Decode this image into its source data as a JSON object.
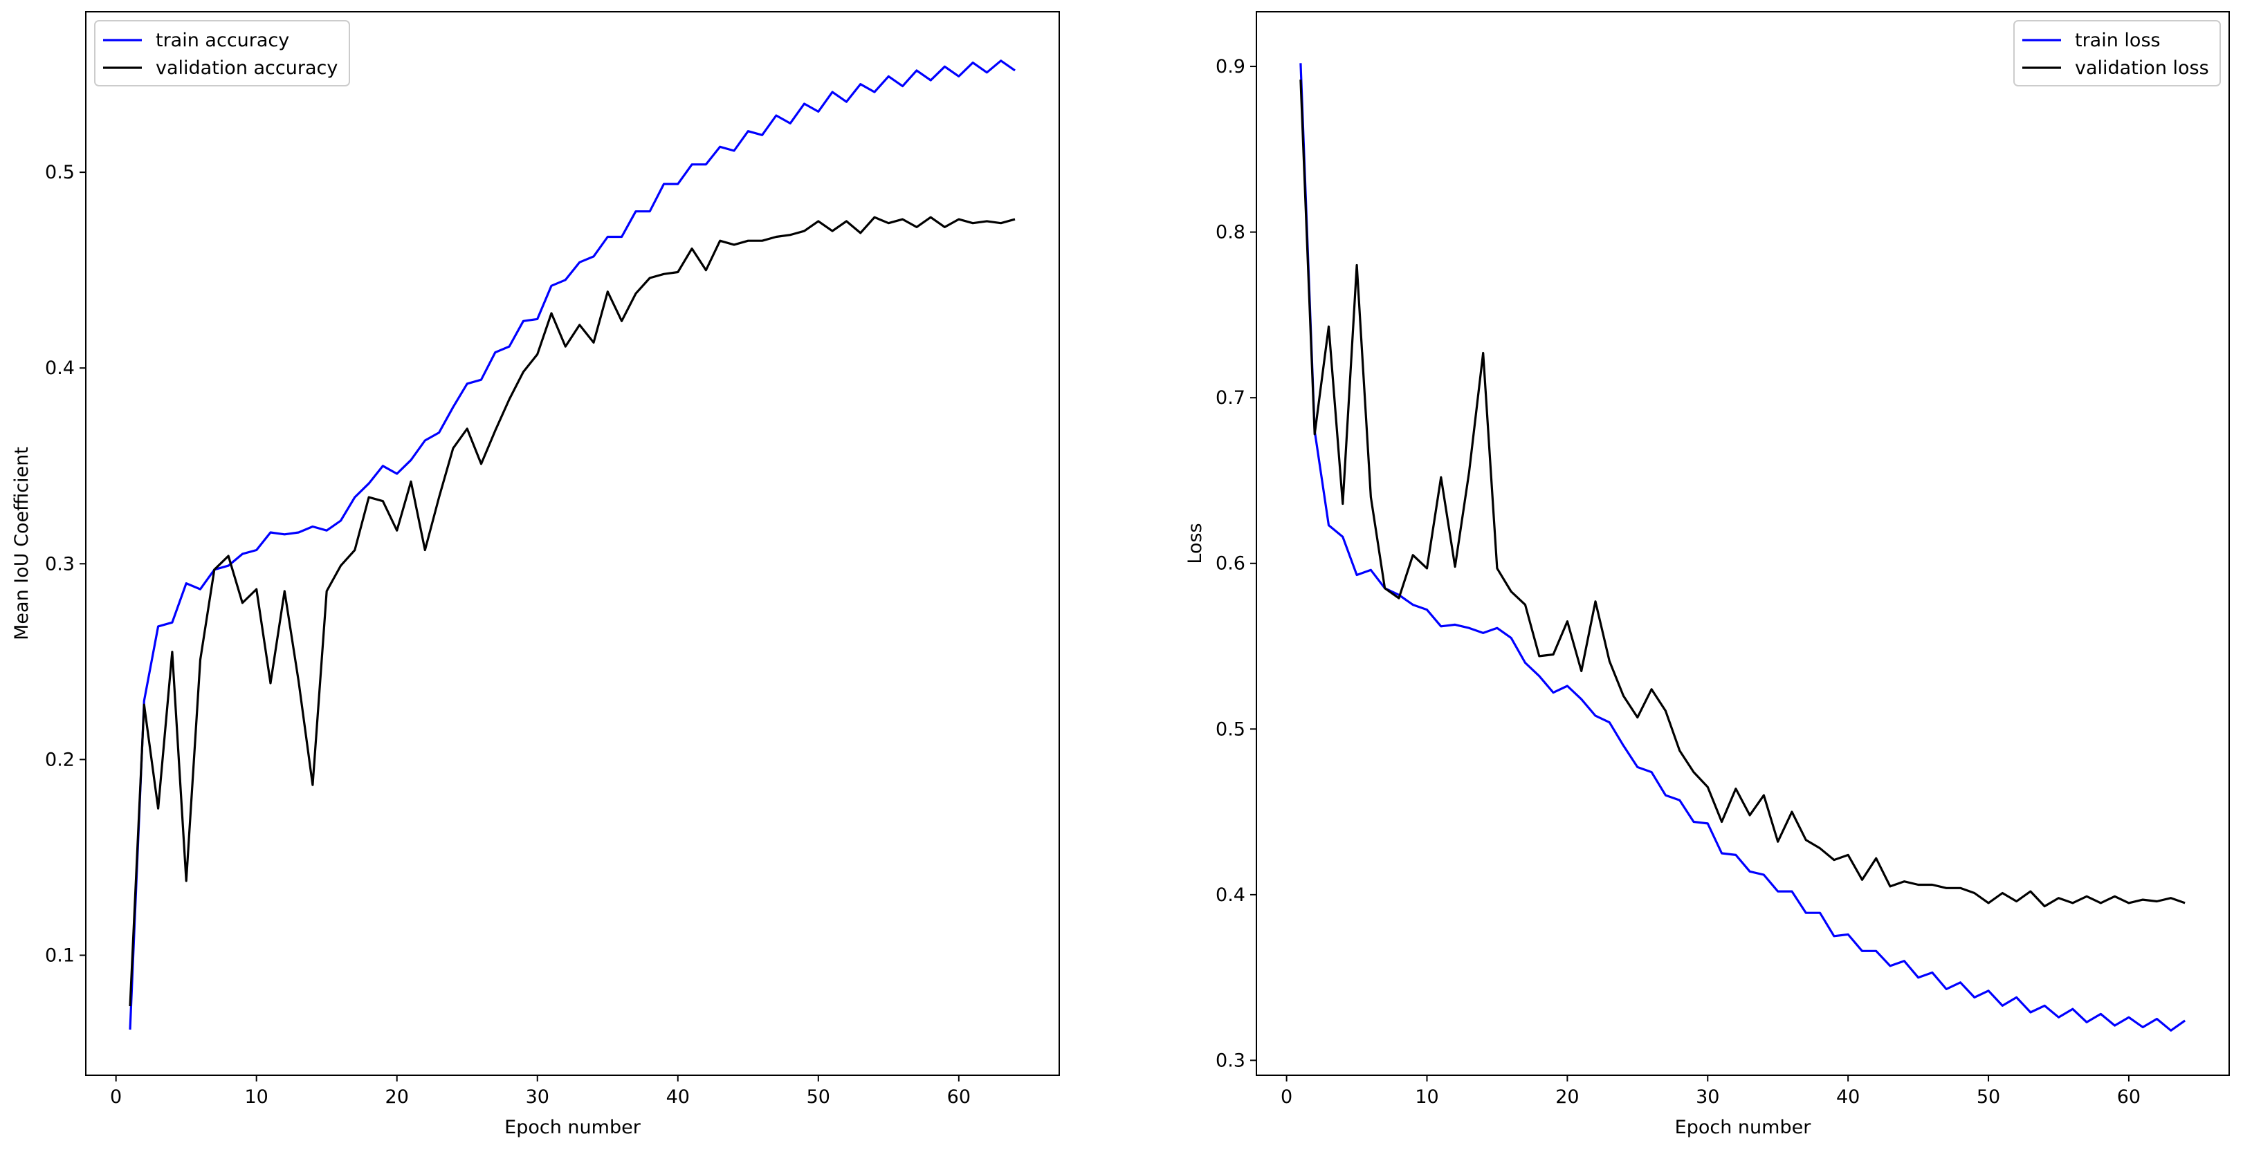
{
  "chart_data": [
    {
      "type": "line",
      "xlabel": "Epoch number",
      "ylabel": "Mean IoU Coefficient",
      "xlim": [
        -2.15,
        67.15
      ],
      "ylim": [
        0.0387,
        0.582
      ],
      "xticks": [
        0,
        10,
        20,
        30,
        40,
        50,
        60
      ],
      "yticks": [
        0.1,
        0.2,
        0.3,
        0.4,
        0.5
      ],
      "ytick_labels": [
        "0.1",
        "0.2",
        "0.3",
        "0.4",
        "0.5"
      ],
      "legend_position": "top-left",
      "grid": false,
      "series": [
        {
          "name": "train accuracy",
          "color": "#0000ff",
          "values": [
            0.062,
            0.23,
            0.268,
            0.27,
            0.29,
            0.287,
            0.297,
            0.299,
            0.305,
            0.307,
            0.316,
            0.315,
            0.316,
            0.319,
            0.317,
            0.322,
            0.334,
            0.341,
            0.35,
            0.346,
            0.353,
            0.363,
            0.367,
            0.38,
            0.392,
            0.394,
            0.408,
            0.411,
            0.424,
            0.425,
            0.442,
            0.445,
            0.454,
            0.457,
            0.467,
            0.467,
            0.48,
            0.48,
            0.494,
            0.494,
            0.504,
            0.504,
            0.513,
            0.511,
            0.521,
            0.519,
            0.529,
            0.525,
            0.535,
            0.531,
            0.541,
            0.536,
            0.545,
            0.541,
            0.549,
            0.544,
            0.552,
            0.547,
            0.554,
            0.549,
            0.556,
            0.551,
            0.557,
            0.552
          ]
        },
        {
          "name": "validation accuracy",
          "color": "#000000",
          "values": [
            0.074,
            0.228,
            0.175,
            0.255,
            0.138,
            0.251,
            0.297,
            0.304,
            0.28,
            0.287,
            0.239,
            0.286,
            0.24,
            0.187,
            0.286,
            0.299,
            0.307,
            0.334,
            0.332,
            0.317,
            0.342,
            0.307,
            0.334,
            0.359,
            0.369,
            0.351,
            0.368,
            0.384,
            0.398,
            0.407,
            0.428,
            0.411,
            0.422,
            0.413,
            0.439,
            0.424,
            0.438,
            0.446,
            0.448,
            0.449,
            0.461,
            0.45,
            0.465,
            0.463,
            0.465,
            0.465,
            0.467,
            0.468,
            0.47,
            0.475,
            0.47,
            0.475,
            0.469,
            0.477,
            0.474,
            0.476,
            0.472,
            0.477,
            0.472,
            0.476,
            0.474,
            0.475,
            0.474,
            0.476
          ]
        }
      ]
    },
    {
      "type": "line",
      "xlabel": "Epoch number",
      "ylabel": "Loss",
      "xlim": [
        -2.15,
        67.15
      ],
      "ylim": [
        0.291,
        0.933
      ],
      "xticks": [
        0,
        10,
        20,
        30,
        40,
        50,
        60
      ],
      "yticks": [
        0.3,
        0.4,
        0.5,
        0.6,
        0.7,
        0.8,
        0.9
      ],
      "ytick_labels": [
        "0.3",
        "0.4",
        "0.5",
        "0.6",
        "0.7",
        "0.8",
        "0.9"
      ],
      "legend_position": "top-right",
      "grid": false,
      "series": [
        {
          "name": "train loss",
          "color": "#0000ff",
          "values": [
            0.902,
            0.68,
            0.623,
            0.616,
            0.593,
            0.596,
            0.585,
            0.581,
            0.575,
            0.572,
            0.562,
            0.563,
            0.561,
            0.558,
            0.561,
            0.555,
            0.54,
            0.532,
            0.522,
            0.526,
            0.518,
            0.508,
            0.504,
            0.49,
            0.477,
            0.474,
            0.46,
            0.457,
            0.444,
            0.443,
            0.425,
            0.424,
            0.414,
            0.412,
            0.402,
            0.402,
            0.389,
            0.389,
            0.375,
            0.376,
            0.366,
            0.366,
            0.357,
            0.36,
            0.35,
            0.353,
            0.343,
            0.347,
            0.338,
            0.342,
            0.333,
            0.338,
            0.329,
            0.333,
            0.326,
            0.331,
            0.323,
            0.328,
            0.321,
            0.326,
            0.32,
            0.325,
            0.318,
            0.324
          ]
        },
        {
          "name": "validation loss",
          "color": "#000000",
          "values": [
            0.892,
            0.678,
            0.743,
            0.636,
            0.78,
            0.64,
            0.585,
            0.579,
            0.605,
            0.597,
            0.652,
            0.598,
            0.655,
            0.727,
            0.597,
            0.583,
            0.575,
            0.544,
            0.545,
            0.565,
            0.535,
            0.577,
            0.541,
            0.52,
            0.507,
            0.524,
            0.511,
            0.487,
            0.474,
            0.465,
            0.444,
            0.464,
            0.448,
            0.46,
            0.432,
            0.45,
            0.433,
            0.428,
            0.421,
            0.424,
            0.409,
            0.422,
            0.405,
            0.408,
            0.406,
            0.406,
            0.404,
            0.404,
            0.401,
            0.395,
            0.401,
            0.396,
            0.402,
            0.393,
            0.398,
            0.395,
            0.399,
            0.395,
            0.399,
            0.395,
            0.397,
            0.396,
            0.398,
            0.395
          ]
        }
      ]
    }
  ]
}
